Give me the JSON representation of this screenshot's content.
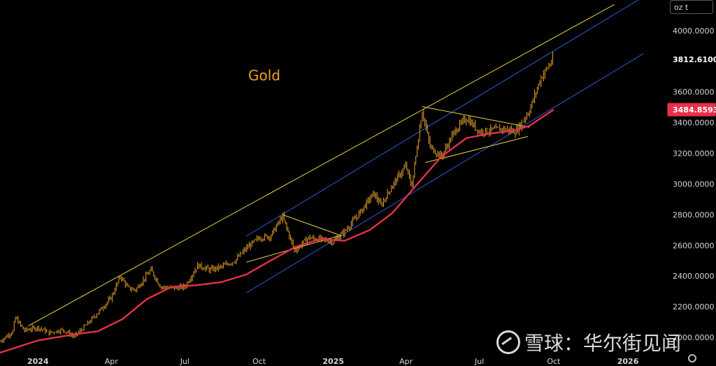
{
  "unit_label": "oz t",
  "watermark": {
    "brand": "雪球",
    "separator": "：",
    "source": "华尔街见闻"
  },
  "icons": {
    "settings": "gear-icon",
    "watermark_logo": "snowball-logo-icon"
  },
  "colors": {
    "background": "#000000",
    "candles": "#e8a22a",
    "moving_average": "#e8304a",
    "channel_upper": "#e8d040",
    "channel_blue": "#2e5bd8",
    "triangle": "#e8d040",
    "price_badge_current": "#ffffff",
    "price_badge_ma": "#e8304a"
  },
  "chart_data": {
    "type": "line",
    "title": "Gold",
    "x_type": "date",
    "x_ticks": [
      {
        "label": "2024",
        "date": "2024-01-01",
        "bold": true
      },
      {
        "label": "Apr",
        "date": "2024-04-01",
        "bold": false
      },
      {
        "label": "Jul",
        "date": "2024-07-01",
        "bold": false
      },
      {
        "label": "Oct",
        "date": "2024-10-01",
        "bold": false
      },
      {
        "label": "2025",
        "date": "2025-01-01",
        "bold": true
      },
      {
        "label": "Apr",
        "date": "2025-04-01",
        "bold": false
      },
      {
        "label": "Jul",
        "date": "2025-07-01",
        "bold": false
      },
      {
        "label": "Oct",
        "date": "2025-10-01",
        "bold": false
      },
      {
        "label": "2026",
        "date": "2026-01-01",
        "bold": true
      }
    ],
    "y_ticks": [
      {
        "label": "4000.0000",
        "value": 4000
      },
      {
        "label": "3600.0000",
        "value": 3600
      },
      {
        "label": "3400.0000",
        "value": 3400
      },
      {
        "label": "3200.0000",
        "value": 3200
      },
      {
        "label": "3000.0000",
        "value": 3000
      },
      {
        "label": "2800.0000",
        "value": 2800
      },
      {
        "label": "2600.0000",
        "value": 2600
      },
      {
        "label": "2400.0000",
        "value": 2400
      },
      {
        "label": "2200.0000",
        "value": 2200
      },
      {
        "label": "2000.0000",
        "value": 2000
      }
    ],
    "ylim": [
      1900,
      4200
    ],
    "xlim": [
      "2023-11-15",
      "2026-02-15"
    ],
    "grid": false,
    "price_labels": [
      {
        "label": "3812.6100",
        "value": 3812.61,
        "kind": "current"
      },
      {
        "label": "3484.8593",
        "value": 3484.8593,
        "kind": "ma"
      }
    ],
    "series": [
      {
        "kind": "price",
        "points": [
          [
            "2023-11-15",
            1975
          ],
          [
            "2023-12-01",
            2040
          ],
          [
            "2023-12-04",
            2130
          ],
          [
            "2023-12-15",
            2045
          ],
          [
            "2024-01-01",
            2065
          ],
          [
            "2024-01-15",
            2030
          ],
          [
            "2024-02-01",
            2050
          ],
          [
            "2024-02-15",
            2005
          ],
          [
            "2024-03-01",
            2080
          ],
          [
            "2024-03-15",
            2160
          ],
          [
            "2024-04-01",
            2260
          ],
          [
            "2024-04-12",
            2400
          ],
          [
            "2024-04-22",
            2320
          ],
          [
            "2024-05-01",
            2310
          ],
          [
            "2024-05-20",
            2440
          ],
          [
            "2024-06-01",
            2330
          ],
          [
            "2024-06-15",
            2320
          ],
          [
            "2024-07-01",
            2330
          ],
          [
            "2024-07-17",
            2470
          ],
          [
            "2024-08-01",
            2440
          ],
          [
            "2024-08-15",
            2460
          ],
          [
            "2024-09-01",
            2500
          ],
          [
            "2024-09-15",
            2580
          ],
          [
            "2024-10-01",
            2650
          ],
          [
            "2024-10-15",
            2660
          ],
          [
            "2024-10-30",
            2790
          ],
          [
            "2024-11-14",
            2565
          ],
          [
            "2024-12-01",
            2650
          ],
          [
            "2024-12-15",
            2640
          ],
          [
            "2025-01-01",
            2625
          ],
          [
            "2025-01-15",
            2690
          ],
          [
            "2025-02-01",
            2800
          ],
          [
            "2025-02-20",
            2940
          ],
          [
            "2025-03-01",
            2860
          ],
          [
            "2025-03-15",
            2990
          ],
          [
            "2025-04-01",
            3120
          ],
          [
            "2025-04-08",
            2980
          ],
          [
            "2025-04-21",
            3480
          ],
          [
            "2025-05-01",
            3240
          ],
          [
            "2025-05-15",
            3180
          ],
          [
            "2025-06-01",
            3350
          ],
          [
            "2025-06-15",
            3430
          ],
          [
            "2025-07-01",
            3340
          ],
          [
            "2025-07-15",
            3350
          ],
          [
            "2025-08-01",
            3360
          ],
          [
            "2025-08-15",
            3340
          ],
          [
            "2025-09-01",
            3480
          ],
          [
            "2025-09-15",
            3690
          ],
          [
            "2025-09-30",
            3812.61
          ]
        ]
      },
      {
        "kind": "moving_average",
        "points": [
          [
            "2023-11-15",
            1900
          ],
          [
            "2024-01-01",
            1980
          ],
          [
            "2024-02-15",
            2020
          ],
          [
            "2024-03-15",
            2040
          ],
          [
            "2024-04-15",
            2120
          ],
          [
            "2024-05-15",
            2250
          ],
          [
            "2024-06-15",
            2330
          ],
          [
            "2024-07-15",
            2340
          ],
          [
            "2024-08-15",
            2360
          ],
          [
            "2024-09-15",
            2410
          ],
          [
            "2024-10-15",
            2500
          ],
          [
            "2024-11-15",
            2590
          ],
          [
            "2024-12-15",
            2640
          ],
          [
            "2025-01-15",
            2630
          ],
          [
            "2025-02-15",
            2700
          ],
          [
            "2025-03-15",
            2810
          ],
          [
            "2025-04-15",
            3000
          ],
          [
            "2025-05-15",
            3180
          ],
          [
            "2025-06-15",
            3300
          ],
          [
            "2025-07-15",
            3330
          ],
          [
            "2025-08-15",
            3350
          ],
          [
            "2025-09-01",
            3380
          ],
          [
            "2025-10-01",
            3484.8593
          ]
        ]
      },
      {
        "kind": "channel_upper",
        "points": [
          [
            "2023-12-20",
            2075
          ],
          [
            "2025-12-15",
            4170
          ]
        ]
      },
      {
        "kind": "channel_mid",
        "points": [
          [
            "2024-09-15",
            2660
          ],
          [
            "2026-01-20",
            4220
          ]
        ]
      },
      {
        "kind": "channel_lower",
        "points": [
          [
            "2024-09-15",
            2290
          ],
          [
            "2026-01-20",
            3850
          ]
        ]
      },
      {
        "kind": "triangle_2024_upper",
        "points": [
          [
            "2024-10-30",
            2800
          ],
          [
            "2025-01-10",
            2665
          ]
        ]
      },
      {
        "kind": "triangle_2024_lower",
        "points": [
          [
            "2024-09-15",
            2490
          ],
          [
            "2025-01-10",
            2665
          ]
        ]
      },
      {
        "kind": "triangle_2025_upper",
        "points": [
          [
            "2025-04-21",
            3505
          ],
          [
            "2025-09-01",
            3370
          ]
        ]
      },
      {
        "kind": "triangle_2025_lower",
        "points": [
          [
            "2025-04-25",
            3140
          ],
          [
            "2025-08-30",
            3310
          ]
        ]
      }
    ]
  }
}
